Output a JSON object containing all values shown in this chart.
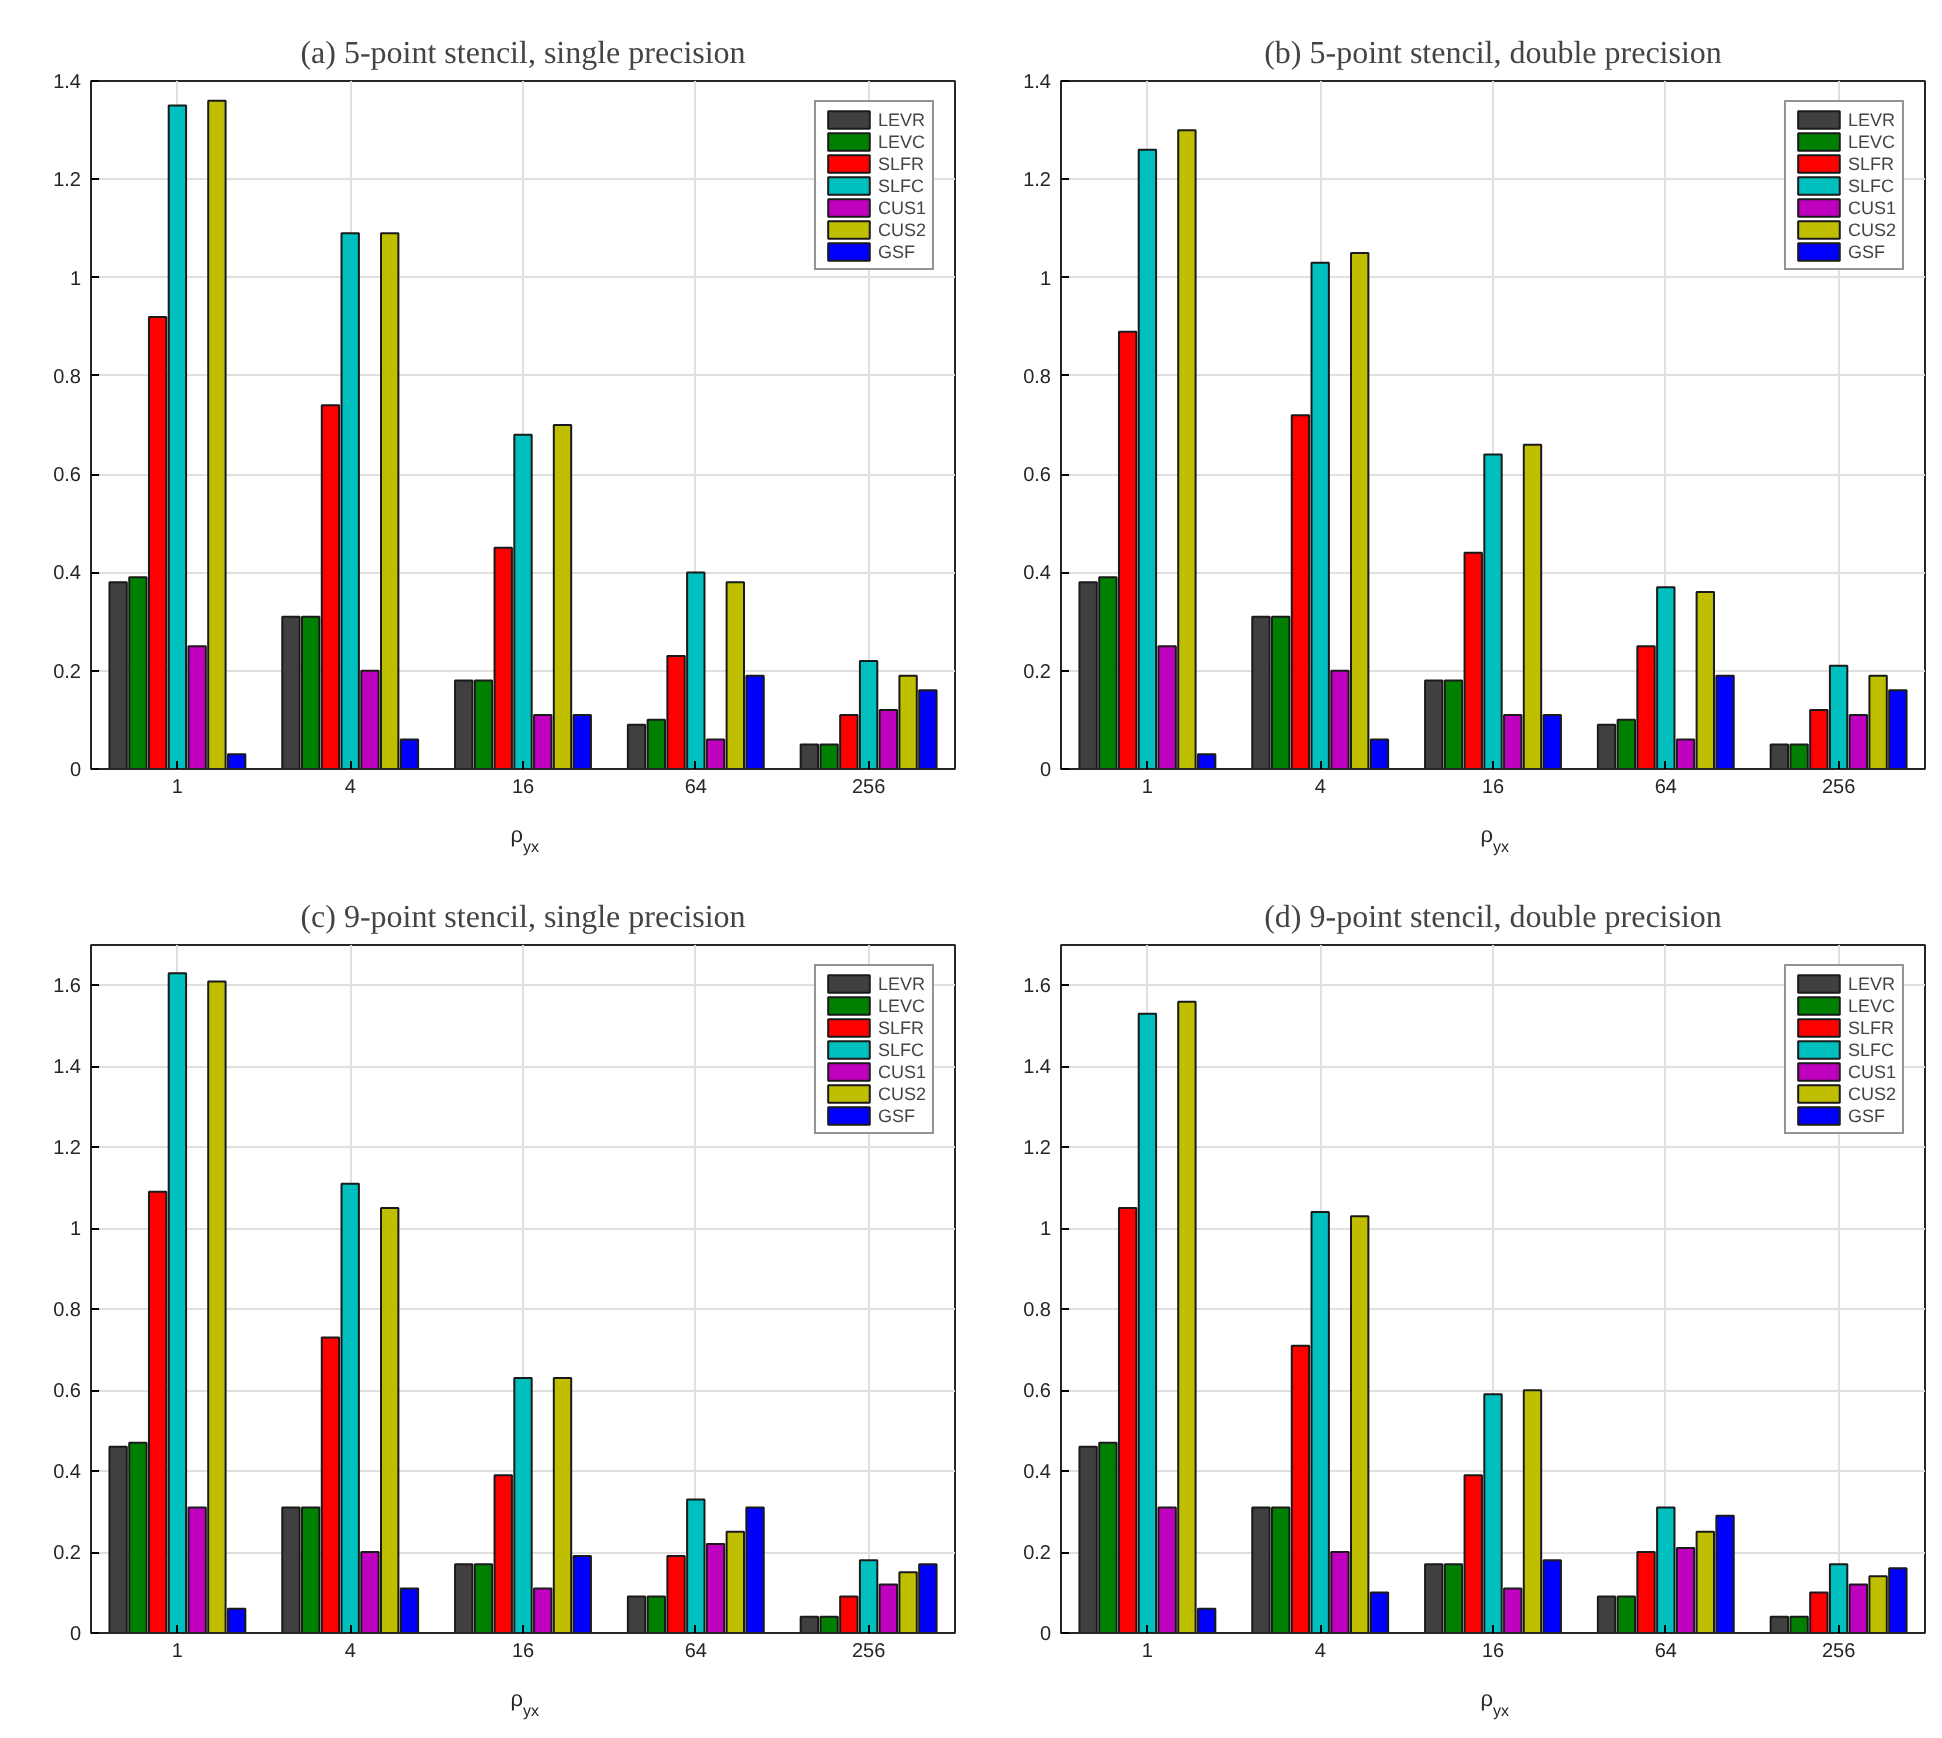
{
  "chart_data": [
    {
      "type": "bar",
      "title": "(a) 5-point stencil, single precision",
      "xlabel": "ρ$_{yx}$",
      "categories": [
        "1",
        "4",
        "16",
        "64",
        "256"
      ],
      "ylim": [
        0,
        1.4
      ],
      "yticks": [
        0,
        0.2,
        0.4,
        0.6,
        0.8,
        1,
        1.2,
        1.4
      ],
      "grid": true,
      "legend": "top right",
      "series": [
        {
          "name": "LEVR",
          "color": "#404040",
          "values": [
            0.38,
            0.31,
            0.18,
            0.09,
            0.05
          ]
        },
        {
          "name": "LEVC",
          "color": "#008000",
          "values": [
            0.39,
            0.31,
            0.18,
            0.1,
            0.05
          ]
        },
        {
          "name": "SLFR",
          "color": "#ff0000",
          "values": [
            0.92,
            0.74,
            0.45,
            0.23,
            0.11
          ]
        },
        {
          "name": "SLFC",
          "color": "#00bfbf",
          "values": [
            1.35,
            1.09,
            0.68,
            0.4,
            0.22
          ]
        },
        {
          "name": "CUS1",
          "color": "#bf00bf",
          "values": [
            0.25,
            0.2,
            0.11,
            0.06,
            0.12
          ]
        },
        {
          "name": "CUS2",
          "color": "#bfbf00",
          "values": [
            1.36,
            1.09,
            0.7,
            0.38,
            0.19
          ]
        },
        {
          "name": "GSF",
          "color": "#0000ff",
          "values": [
            0.03,
            0.06,
            0.11,
            0.19,
            0.16
          ]
        }
      ]
    },
    {
      "type": "bar",
      "title": "(b) 5-point stencil, double precision",
      "xlabel": "ρ$_{yx}$",
      "categories": [
        "1",
        "4",
        "16",
        "64",
        "256"
      ],
      "ylim": [
        0,
        1.4
      ],
      "yticks": [
        0,
        0.2,
        0.4,
        0.6,
        0.8,
        1,
        1.2,
        1.4
      ],
      "grid": true,
      "legend": "top right",
      "series": [
        {
          "name": "LEVR",
          "color": "#404040",
          "values": [
            0.38,
            0.31,
            0.18,
            0.09,
            0.05
          ]
        },
        {
          "name": "LEVC",
          "color": "#008000",
          "values": [
            0.39,
            0.31,
            0.18,
            0.1,
            0.05
          ]
        },
        {
          "name": "SLFR",
          "color": "#ff0000",
          "values": [
            0.89,
            0.72,
            0.44,
            0.25,
            0.12
          ]
        },
        {
          "name": "SLFC",
          "color": "#00bfbf",
          "values": [
            1.26,
            1.03,
            0.64,
            0.37,
            0.21
          ]
        },
        {
          "name": "CUS1",
          "color": "#bf00bf",
          "values": [
            0.25,
            0.2,
            0.11,
            0.06,
            0.11
          ]
        },
        {
          "name": "CUS2",
          "color": "#bfbf00",
          "values": [
            1.3,
            1.05,
            0.66,
            0.36,
            0.19
          ]
        },
        {
          "name": "GSF",
          "color": "#0000ff",
          "values": [
            0.03,
            0.06,
            0.11,
            0.19,
            0.16
          ]
        }
      ]
    },
    {
      "type": "bar",
      "title": "(c) 9-point stencil, single precision",
      "xlabel": "ρ$_{yx}$",
      "categories": [
        "1",
        "4",
        "16",
        "64",
        "256"
      ],
      "ylim": [
        0,
        1.7
      ],
      "yticks": [
        0,
        0.2,
        0.4,
        0.6,
        0.8,
        1,
        1.2,
        1.4,
        1.6
      ],
      "grid": true,
      "legend": "top right",
      "series": [
        {
          "name": "LEVR",
          "color": "#404040",
          "values": [
            0.46,
            0.31,
            0.17,
            0.09,
            0.04
          ]
        },
        {
          "name": "LEVC",
          "color": "#008000",
          "values": [
            0.47,
            0.31,
            0.17,
            0.09,
            0.04
          ]
        },
        {
          "name": "SLFR",
          "color": "#ff0000",
          "values": [
            1.09,
            0.73,
            0.39,
            0.19,
            0.09
          ]
        },
        {
          "name": "SLFC",
          "color": "#00bfbf",
          "values": [
            1.63,
            1.11,
            0.63,
            0.33,
            0.18
          ]
        },
        {
          "name": "CUS1",
          "color": "#bf00bf",
          "values": [
            0.31,
            0.2,
            0.11,
            0.22,
            0.12
          ]
        },
        {
          "name": "CUS2",
          "color": "#bfbf00",
          "values": [
            1.61,
            1.05,
            0.63,
            0.25,
            0.15
          ]
        },
        {
          "name": "GSF",
          "color": "#0000ff",
          "values": [
            0.06,
            0.11,
            0.19,
            0.31,
            0.17
          ]
        }
      ]
    },
    {
      "type": "bar",
      "title": "(d) 9-point stencil, double precision",
      "xlabel": "ρ$_{yx}$",
      "categories": [
        "1",
        "4",
        "16",
        "64",
        "256"
      ],
      "ylim": [
        0,
        1.7
      ],
      "yticks": [
        0,
        0.2,
        0.4,
        0.6,
        0.8,
        1,
        1.2,
        1.4,
        1.6
      ],
      "grid": true,
      "legend": "top right",
      "series": [
        {
          "name": "LEVR",
          "color": "#404040",
          "values": [
            0.46,
            0.31,
            0.17,
            0.09,
            0.04
          ]
        },
        {
          "name": "LEVC",
          "color": "#008000",
          "values": [
            0.47,
            0.31,
            0.17,
            0.09,
            0.04
          ]
        },
        {
          "name": "SLFR",
          "color": "#ff0000",
          "values": [
            1.05,
            0.71,
            0.39,
            0.2,
            0.1
          ]
        },
        {
          "name": "SLFC",
          "color": "#00bfbf",
          "values": [
            1.53,
            1.04,
            0.59,
            0.31,
            0.17
          ]
        },
        {
          "name": "CUS1",
          "color": "#bf00bf",
          "values": [
            0.31,
            0.2,
            0.11,
            0.21,
            0.12
          ]
        },
        {
          "name": "CUS2",
          "color": "#bfbf00",
          "values": [
            1.56,
            1.03,
            0.6,
            0.25,
            0.14
          ]
        },
        {
          "name": "GSF",
          "color": "#0000ff",
          "values": [
            0.06,
            0.1,
            0.18,
            0.29,
            0.16
          ]
        }
      ]
    }
  ]
}
